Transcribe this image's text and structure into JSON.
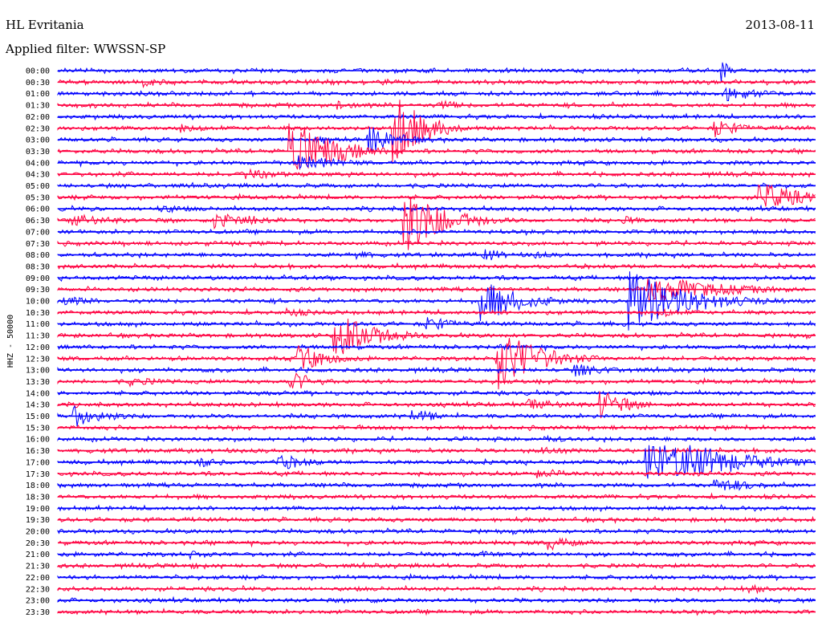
{
  "header": {
    "station": "HL Evritania",
    "date": "2013-08-11",
    "filter": "Applied filter: WWSSN-SP"
  },
  "chart_data": {
    "type": "line",
    "title": "HL Evritania",
    "subtitle": "Applied filter: WWSSN-SP",
    "ylabel": "HHZ - 50000",
    "grid": false,
    "colors": [
      "#0000ff",
      "#ff0040"
    ],
    "rows": [
      "00:00",
      "00:30",
      "01:00",
      "01:30",
      "02:00",
      "02:30",
      "03:00",
      "03:30",
      "04:00",
      "04:30",
      "05:00",
      "05:30",
      "06:00",
      "06:30",
      "07:00",
      "07:30",
      "08:00",
      "08:30",
      "09:00",
      "09:30",
      "10:00",
      "10:30",
      "11:00",
      "11:30",
      "12:00",
      "12:30",
      "13:00",
      "13:30",
      "14:00",
      "14:30",
      "15:00",
      "15:30",
      "16:00",
      "16:30",
      "17:00",
      "17:30",
      "18:00",
      "18:30",
      "19:00",
      "19:30",
      "20:00",
      "20:30",
      "21:00",
      "21:30",
      "22:00",
      "22:30",
      "23:00",
      "23:30"
    ],
    "x_range_minutes": [
      0,
      30
    ],
    "events": [
      {
        "row": 0,
        "t": 26.3,
        "amp": 1.2,
        "dur": 0.3
      },
      {
        "row": 1,
        "t": 3.4,
        "amp": 0.5,
        "dur": 1.2
      },
      {
        "row": 2,
        "t": 26.5,
        "amp": 0.8,
        "dur": 1.6
      },
      {
        "row": 3,
        "t": 11.1,
        "amp": 0.6,
        "dur": 1.0
      },
      {
        "row": 3,
        "t": 15.1,
        "amp": 0.6,
        "dur": 1.0
      },
      {
        "row": 5,
        "t": 4.8,
        "amp": 0.5,
        "dur": 1.6
      },
      {
        "row": 5,
        "t": 13.3,
        "amp": 3.8,
        "dur": 1.2
      },
      {
        "row": 5,
        "t": 26.0,
        "amp": 1.0,
        "dur": 1.2
      },
      {
        "row": 6,
        "t": 10.2,
        "amp": 0.8,
        "dur": 0.8
      },
      {
        "row": 6,
        "t": 12.3,
        "amp": 1.6,
        "dur": 1.2
      },
      {
        "row": 7,
        "t": 9.2,
        "amp": 3.8,
        "dur": 1.6
      },
      {
        "row": 8,
        "t": 9.5,
        "amp": 1.0,
        "dur": 1.6
      },
      {
        "row": 9,
        "t": 7.3,
        "amp": 0.6,
        "dur": 2.0
      },
      {
        "row": 11,
        "t": 27.7,
        "amp": 1.8,
        "dur": 1.6
      },
      {
        "row": 12,
        "t": 4.0,
        "amp": 0.5,
        "dur": 1.6
      },
      {
        "row": 13,
        "t": 0.6,
        "amp": 0.7,
        "dur": 2.0
      },
      {
        "row": 13,
        "t": 6.2,
        "amp": 1.0,
        "dur": 1.4
      },
      {
        "row": 13,
        "t": 7.6,
        "amp": 0.6,
        "dur": 1.4
      },
      {
        "row": 13,
        "t": 13.7,
        "amp": 3.5,
        "dur": 1.6
      },
      {
        "row": 13,
        "t": 22.3,
        "amp": 0.5,
        "dur": 1.2
      },
      {
        "row": 16,
        "t": 11.8,
        "amp": 0.6,
        "dur": 0.8
      },
      {
        "row": 16,
        "t": 16.9,
        "amp": 0.8,
        "dur": 0.8
      },
      {
        "row": 16,
        "t": 18.9,
        "amp": 0.5,
        "dur": 0.8
      },
      {
        "row": 19,
        "t": 23.4,
        "amp": 1.4,
        "dur": 1.4
      },
      {
        "row": 19,
        "t": 23.5,
        "amp": 1.5,
        "dur": 3.0
      },
      {
        "row": 20,
        "t": 0.2,
        "amp": 0.7,
        "dur": 1.0
      },
      {
        "row": 20,
        "t": 16.7,
        "amp": 2.4,
        "dur": 1.6
      },
      {
        "row": 20,
        "t": 22.6,
        "amp": 3.2,
        "dur": 2.4
      },
      {
        "row": 21,
        "t": 9.1,
        "amp": 0.5,
        "dur": 1.6
      },
      {
        "row": 21,
        "t": 23.8,
        "amp": 0.5,
        "dur": 1.6
      },
      {
        "row": 22,
        "t": 14.6,
        "amp": 0.8,
        "dur": 1.4
      },
      {
        "row": 23,
        "t": 10.9,
        "amp": 2.6,
        "dur": 1.6
      },
      {
        "row": 25,
        "t": 9.5,
        "amp": 1.6,
        "dur": 1.2
      },
      {
        "row": 25,
        "t": 17.4,
        "amp": 3.4,
        "dur": 1.6
      },
      {
        "row": 26,
        "t": 20.5,
        "amp": 0.7,
        "dur": 2.0
      },
      {
        "row": 27,
        "t": 2.9,
        "amp": 0.5,
        "dur": 1.6
      },
      {
        "row": 27,
        "t": 9.2,
        "amp": 1.2,
        "dur": 1.0
      },
      {
        "row": 29,
        "t": 18.5,
        "amp": 0.6,
        "dur": 2.4
      },
      {
        "row": 29,
        "t": 21.5,
        "amp": 1.5,
        "dur": 1.2
      },
      {
        "row": 30,
        "t": 0.6,
        "amp": 1.2,
        "dur": 1.4
      },
      {
        "row": 30,
        "t": 14.0,
        "amp": 0.8,
        "dur": 1.2
      },
      {
        "row": 32,
        "t": 19.1,
        "amp": 0.5,
        "dur": 1.2
      },
      {
        "row": 33,
        "t": 19.2,
        "amp": 0.5,
        "dur": 1.6
      },
      {
        "row": 34,
        "t": 5.5,
        "amp": 0.6,
        "dur": 1.2
      },
      {
        "row": 34,
        "t": 8.7,
        "amp": 1.0,
        "dur": 1.2
      },
      {
        "row": 34,
        "t": 23.3,
        "amp": 2.3,
        "dur": 3.2
      },
      {
        "row": 34,
        "t": 24.8,
        "amp": 2.2,
        "dur": 2.4
      },
      {
        "row": 35,
        "t": 19.0,
        "amp": 0.6,
        "dur": 1.6
      },
      {
        "row": 36,
        "t": 26.0,
        "amp": 0.8,
        "dur": 2.0
      },
      {
        "row": 41,
        "t": 19.4,
        "amp": 0.9,
        "dur": 1.0
      },
      {
        "row": 42,
        "t": 5.2,
        "amp": 0.5,
        "dur": 1.2
      },
      {
        "row": 42,
        "t": 16.8,
        "amp": 0.5,
        "dur": 0.8
      },
      {
        "row": 43,
        "t": 5.2,
        "amp": 0.4,
        "dur": 1.0
      },
      {
        "row": 45,
        "t": 27.4,
        "amp": 0.6,
        "dur": 0.8
      },
      {
        "row": 46,
        "t": 12.3,
        "amp": 0.4,
        "dur": 0.6
      }
    ]
  }
}
